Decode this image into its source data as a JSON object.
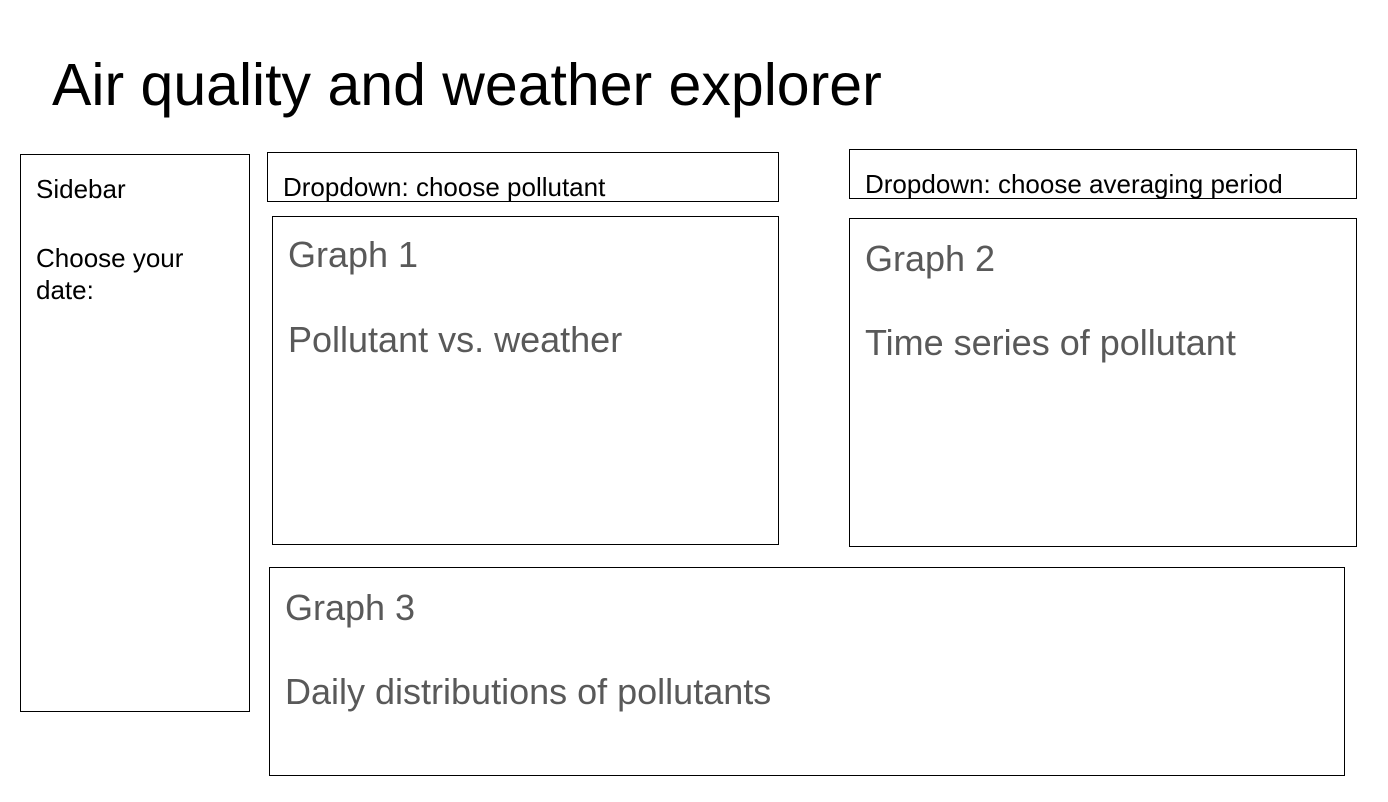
{
  "page": {
    "title": "Air quality and weather explorer"
  },
  "sidebar": {
    "title": "Sidebar",
    "date_label": "Choose your date:"
  },
  "dropdowns": {
    "pollutant": "Dropdown: choose pollutant",
    "averaging_period": "Dropdown: choose averaging period"
  },
  "graphs": [
    {
      "title": "Graph 1",
      "description": "Pollutant vs. weather"
    },
    {
      "title": "Graph 2",
      "description": "Time series of pollutant"
    },
    {
      "title": "Graph 3",
      "description": "Daily distributions of pollutants"
    }
  ],
  "colors": {
    "border": "#000000",
    "placeholder_text": "#595959",
    "background": "#ffffff"
  }
}
